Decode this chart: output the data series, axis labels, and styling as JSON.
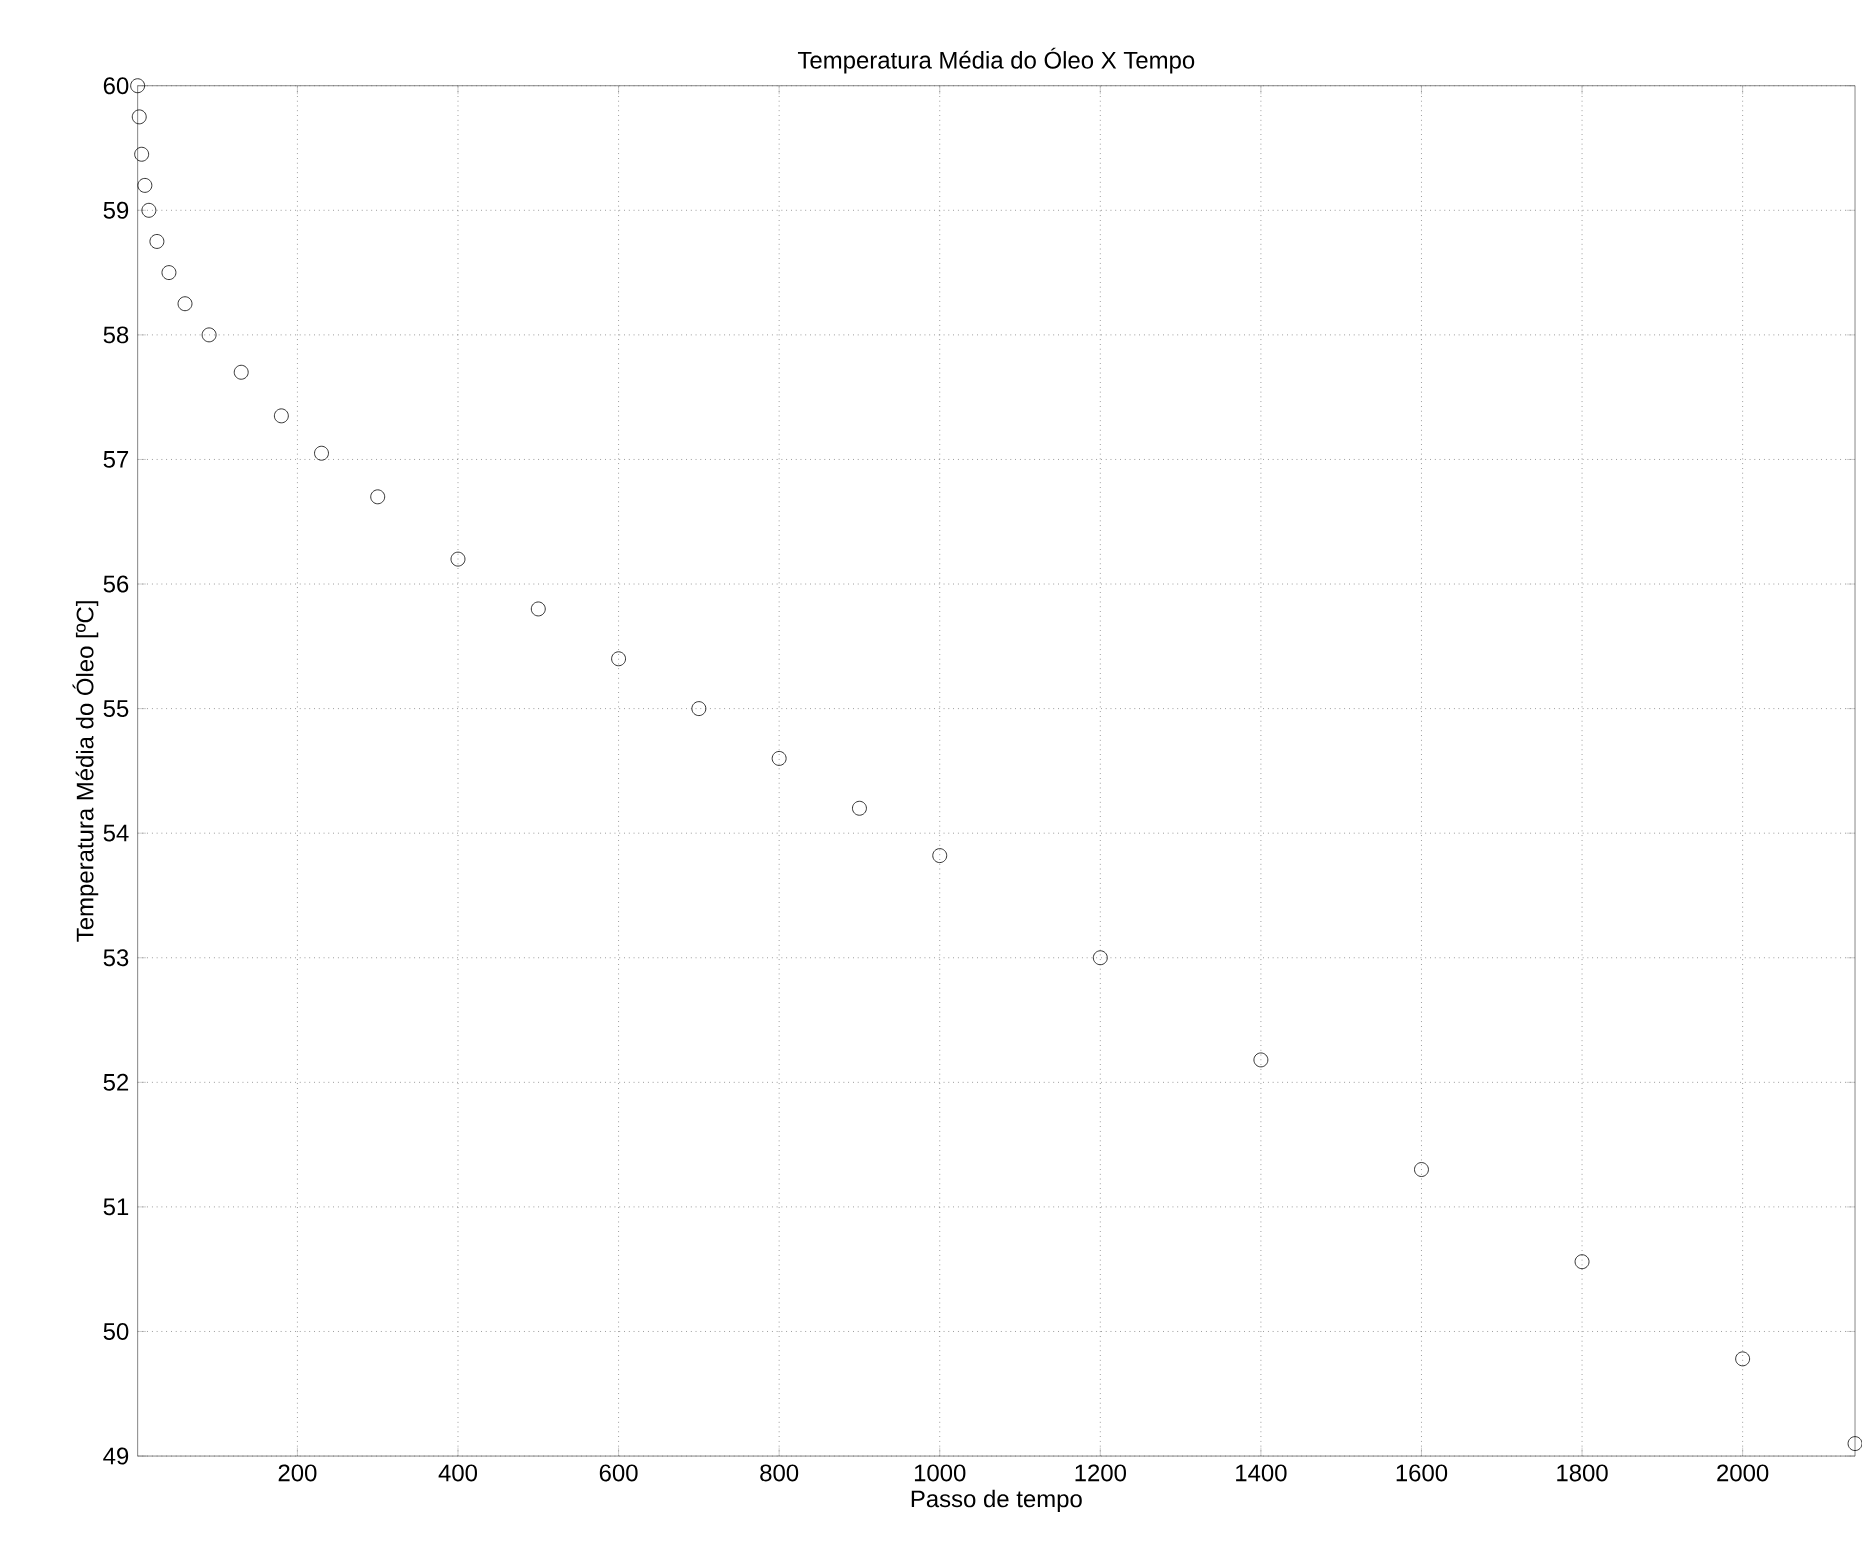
{
  "chart_data": {
    "type": "scatter",
    "title": "Temperatura Média do Óleo X Tempo",
    "xlabel": "Passo de tempo",
    "ylabel": "Temperatura Média do Óleo [ºC]",
    "x": [
      1,
      3,
      6,
      10,
      15,
      25,
      40,
      60,
      90,
      130,
      180,
      230,
      300,
      400,
      500,
      600,
      700,
      800,
      900,
      1000,
      1200,
      1400,
      1600,
      1800,
      2000,
      2140
    ],
    "series": [
      {
        "color": "#000000",
        "values": [
          60,
          59.75,
          59.45,
          59.2,
          59.0,
          58.75,
          58.5,
          58.25,
          58.0,
          57.7,
          57.35,
          57.05,
          56.7,
          56.2,
          55.8,
          55.4,
          55.0,
          54.6,
          54.2,
          53.82,
          53.0,
          52.18,
          51.3,
          50.56,
          49.78,
          49.1
        ]
      }
    ],
    "xlim": [
      1,
      2140
    ],
    "ylim": [
      49,
      60
    ],
    "xticks": [
      200,
      400,
      600,
      800,
      1000,
      1200,
      1400,
      1600,
      1800,
      2000
    ],
    "yticks": [
      49,
      50,
      51,
      52,
      53,
      54,
      55,
      56,
      57,
      58,
      59,
      60
    ],
    "grid": true,
    "marker": "circle"
  }
}
